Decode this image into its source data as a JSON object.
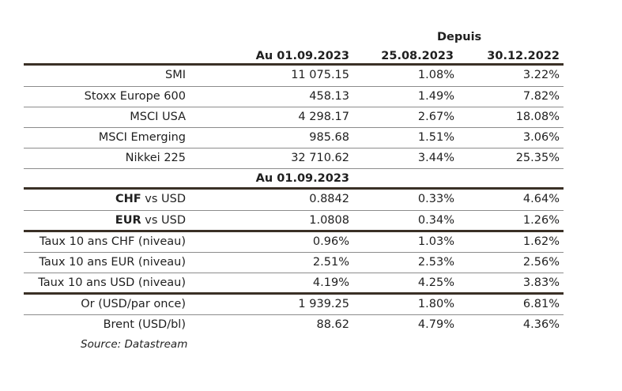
{
  "header": {
    "group_label": "Depuis",
    "col1": "Au 01.09.2023",
    "col2": "25.08.2023",
    "col3": "30.12.2022"
  },
  "section_equity": [
    {
      "label": "SMI",
      "v1": "11 075.15",
      "v2": "1.08%",
      "v3": "3.22%"
    },
    {
      "label": "Stoxx Europe 600",
      "v1": "458.13",
      "v2": "1.49%",
      "v3": "7.82%"
    },
    {
      "label": "MSCI USA",
      "v1": "4 298.17",
      "v2": "2.67%",
      "v3": "18.08%"
    },
    {
      "label": "MSCI Emerging",
      "v1": "985.68",
      "v2": "1.51%",
      "v3": "3.06%"
    },
    {
      "label": "Nikkei 225",
      "v1": "32 710.62",
      "v2": "3.44%",
      "v3": "25.35%"
    }
  ],
  "subheader": "Au 01.09.2023",
  "section_fx": [
    {
      "bold": "CHF",
      "rest": " vs USD",
      "v1": "0.8842",
      "v2": "0.33%",
      "v3": "4.64%"
    },
    {
      "bold": "EUR",
      "rest": " vs USD",
      "v1": "1.0808",
      "v2": "0.34%",
      "v3": "1.26%"
    }
  ],
  "section_rates": [
    {
      "label": "Taux 10 ans CHF (niveau)",
      "v1": "0.96%",
      "v2": "1.03%",
      "v3": "1.62%"
    },
    {
      "label": "Taux 10 ans EUR (niveau)",
      "v1": "2.51%",
      "v2": "2.53%",
      "v3": "2.56%"
    },
    {
      "label": "Taux 10 ans USD (niveau)",
      "v1": "4.19%",
      "v2": "4.25%",
      "v3": "3.83%"
    }
  ],
  "section_commod": [
    {
      "label": "Or (USD/par once)",
      "v1": "1 939.25",
      "v2": "1.80%",
      "v3": "6.81%"
    },
    {
      "label": "Brent (USD/bl)",
      "v1": "88.62",
      "v2": "4.79%",
      "v3": "4.36%"
    }
  ],
  "source": "Source: Datastream"
}
